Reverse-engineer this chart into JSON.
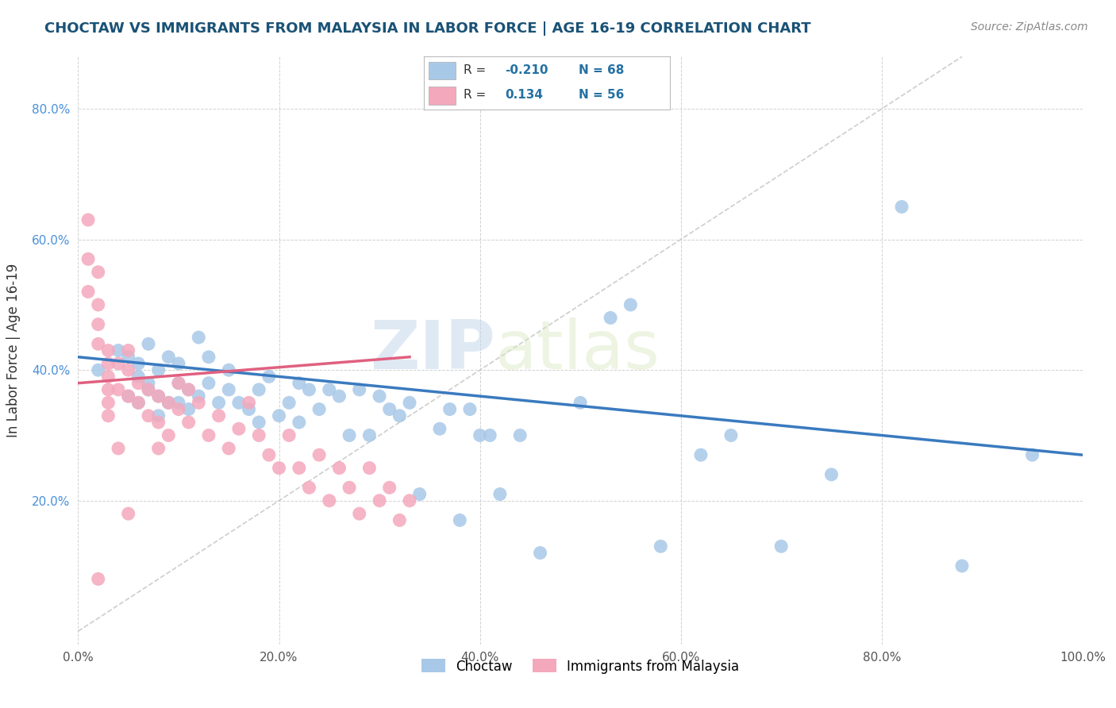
{
  "title": "CHOCTAW VS IMMIGRANTS FROM MALAYSIA IN LABOR FORCE | AGE 16-19 CORRELATION CHART",
  "source_text": "Source: ZipAtlas.com",
  "ylabel": "In Labor Force | Age 16-19",
  "xlabel": "",
  "xlim": [
    0.0,
    1.0
  ],
  "ylim": [
    -0.02,
    0.88
  ],
  "x_ticks": [
    0.0,
    0.2,
    0.4,
    0.6,
    0.8,
    1.0
  ],
  "x_tick_labels": [
    "0.0%",
    "20.0%",
    "40.0%",
    "60.0%",
    "80.0%",
    "100.0%"
  ],
  "y_ticks": [
    0.2,
    0.4,
    0.6,
    0.8
  ],
  "y_tick_labels": [
    "20.0%",
    "40.0%",
    "60.0%",
    "80.0%"
  ],
  "choctaw_color": "#a8c8e8",
  "malaysia_color": "#f4a8bc",
  "trendline_choctaw_color": "#3a7abf",
  "trendline_malaysia_color": "#e06080",
  "diagonal_color": "#c8c8c8",
  "watermark_zip": "ZIP",
  "watermark_atlas": "atlas",
  "background_color": "#ffffff",
  "choctaw_x": [
    0.02,
    0.04,
    0.05,
    0.05,
    0.06,
    0.06,
    0.06,
    0.07,
    0.07,
    0.07,
    0.08,
    0.08,
    0.08,
    0.09,
    0.09,
    0.1,
    0.1,
    0.1,
    0.11,
    0.11,
    0.12,
    0.12,
    0.13,
    0.13,
    0.14,
    0.15,
    0.15,
    0.16,
    0.17,
    0.18,
    0.18,
    0.19,
    0.2,
    0.21,
    0.22,
    0.22,
    0.23,
    0.24,
    0.25,
    0.26,
    0.27,
    0.28,
    0.29,
    0.3,
    0.31,
    0.32,
    0.33,
    0.34,
    0.36,
    0.37,
    0.38,
    0.39,
    0.4,
    0.41,
    0.42,
    0.44,
    0.46,
    0.5,
    0.53,
    0.55,
    0.58,
    0.62,
    0.65,
    0.7,
    0.75,
    0.82,
    0.88,
    0.95
  ],
  "choctaw_y": [
    0.4,
    0.43,
    0.36,
    0.42,
    0.41,
    0.35,
    0.39,
    0.37,
    0.44,
    0.38,
    0.33,
    0.4,
    0.36,
    0.35,
    0.42,
    0.38,
    0.35,
    0.41,
    0.34,
    0.37,
    0.36,
    0.45,
    0.38,
    0.42,
    0.35,
    0.37,
    0.4,
    0.35,
    0.34,
    0.37,
    0.32,
    0.39,
    0.33,
    0.35,
    0.32,
    0.38,
    0.37,
    0.34,
    0.37,
    0.36,
    0.3,
    0.37,
    0.3,
    0.36,
    0.34,
    0.33,
    0.35,
    0.21,
    0.31,
    0.34,
    0.17,
    0.34,
    0.3,
    0.3,
    0.21,
    0.3,
    0.12,
    0.35,
    0.48,
    0.5,
    0.13,
    0.27,
    0.3,
    0.13,
    0.24,
    0.65,
    0.1,
    0.27
  ],
  "malaysia_x": [
    0.01,
    0.01,
    0.01,
    0.02,
    0.02,
    0.02,
    0.02,
    0.02,
    0.03,
    0.03,
    0.03,
    0.03,
    0.03,
    0.03,
    0.04,
    0.04,
    0.04,
    0.05,
    0.05,
    0.05,
    0.06,
    0.06,
    0.07,
    0.07,
    0.08,
    0.08,
    0.08,
    0.09,
    0.09,
    0.1,
    0.1,
    0.11,
    0.11,
    0.12,
    0.13,
    0.14,
    0.15,
    0.16,
    0.17,
    0.18,
    0.19,
    0.2,
    0.21,
    0.22,
    0.23,
    0.24,
    0.25,
    0.26,
    0.27,
    0.28,
    0.29,
    0.3,
    0.31,
    0.32,
    0.33,
    0.05
  ],
  "malaysia_y": [
    0.63,
    0.57,
    0.52,
    0.55,
    0.5,
    0.47,
    0.44,
    0.08,
    0.43,
    0.41,
    0.39,
    0.37,
    0.35,
    0.33,
    0.41,
    0.37,
    0.28,
    0.43,
    0.4,
    0.36,
    0.38,
    0.35,
    0.37,
    0.33,
    0.36,
    0.32,
    0.28,
    0.35,
    0.3,
    0.38,
    0.34,
    0.37,
    0.32,
    0.35,
    0.3,
    0.33,
    0.28,
    0.31,
    0.35,
    0.3,
    0.27,
    0.25,
    0.3,
    0.25,
    0.22,
    0.27,
    0.2,
    0.25,
    0.22,
    0.18,
    0.25,
    0.2,
    0.22,
    0.17,
    0.2,
    0.18
  ],
  "choctaw_trendline_x0": 0.0,
  "choctaw_trendline_y0": 0.42,
  "choctaw_trendline_x1": 1.0,
  "choctaw_trendline_y1": 0.27,
  "malaysia_trendline_x0": 0.0,
  "malaysia_trendline_y0": 0.38,
  "malaysia_trendline_x1": 0.33,
  "malaysia_trendline_y1": 0.42
}
